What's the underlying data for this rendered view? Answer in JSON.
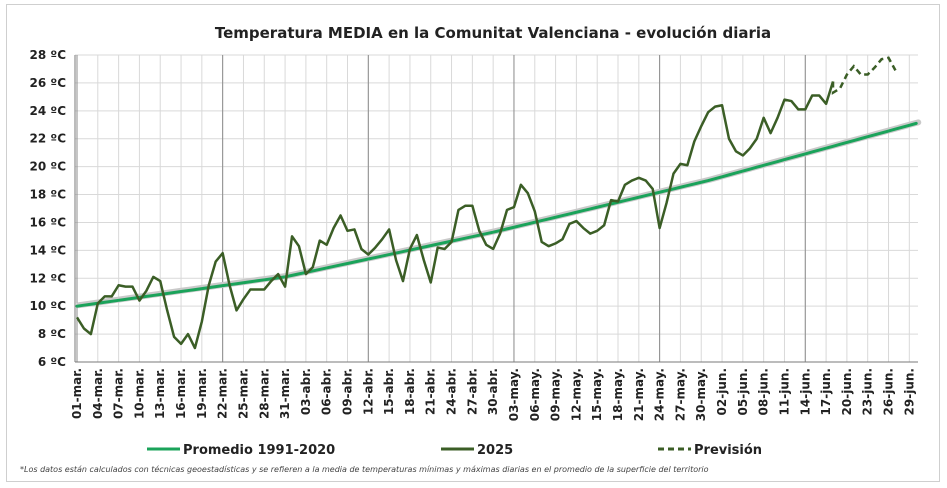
{
  "chart_data": {
    "type": "line",
    "title": "Temperatura MEDIA en la Comunitat Valenciana - evolución diaria",
    "footnote": "*Los datos están calculados con técnicas geoestadísticas y se refieren a la media de temperaturas mínimas y máximas diarias en el promedio de la superficie del territorio",
    "y_unit": "ºC",
    "ylim": [
      6,
      28
    ],
    "y_ticks": [
      6,
      8,
      10,
      12,
      14,
      16,
      18,
      20,
      22,
      24,
      26,
      28
    ],
    "y_tick_labels": [
      "6 ºC",
      "8 ºC",
      "10 ºC",
      "12 ºC",
      "14 ºC",
      "16 ºC",
      "18 ºC",
      "20 ºC",
      "22 ºC",
      "24 ºC",
      "26 ºC",
      "28 ºC"
    ],
    "x_start": "2025-03-01",
    "x_end": "2025-06-30",
    "x_tick_labels": [
      "01-mar.",
      "04-mar.",
      "07-mar.",
      "10-mar.",
      "13-mar.",
      "16-mar.",
      "19-mar.",
      "22-mar.",
      "25-mar.",
      "28-mar.",
      "31-mar.",
      "03-abr.",
      "06-abr.",
      "09-abr.",
      "12-abr.",
      "15-abr.",
      "18-abr.",
      "21-abr.",
      "24-abr.",
      "27-abr.",
      "30-abr.",
      "03-may.",
      "06-may.",
      "09-may.",
      "12-may.",
      "15-may.",
      "18-may.",
      "21-may.",
      "24-may.",
      "27-may.",
      "30-may.",
      "02-jun.",
      "05-jun.",
      "08-jun.",
      "11-jun.",
      "14-jun.",
      "17-jun.",
      "20-jun.",
      "23-jun.",
      "26-jun.",
      "29-jun."
    ],
    "month_separators": [
      "01-mar.",
      "22-mar.",
      "12-abr.",
      "03-may.",
      "24-may.",
      "14-jun."
    ],
    "grid": true,
    "legend_position": "bottom",
    "colors": {
      "promedio": "#1aa35a",
      "promedio_shadow": "#c9c9c9",
      "actual": "#3b5e26",
      "prevision": "#3b5e26",
      "grid": "#d9d9d9",
      "month_line": "#8c8c8c"
    },
    "series": [
      {
        "name": "Promedio 1991-2020",
        "style": "solid",
        "x": [
          "01-mar.",
          "31-mar.",
          "30-abr.",
          "31-may.",
          "30-jun."
        ],
        "values": [
          10.0,
          12.1,
          15.3,
          19.0,
          23.1
        ]
      },
      {
        "name": "2025",
        "style": "solid",
        "x_start": "01-mar.",
        "values": [
          9.2,
          8.4,
          8.0,
          10.2,
          10.7,
          10.7,
          11.5,
          11.4,
          11.4,
          10.4,
          11.1,
          12.1,
          11.8,
          9.7,
          7.8,
          7.3,
          8.0,
          7.0,
          8.9,
          11.5,
          13.2,
          13.8,
          11.5,
          9.7,
          10.5,
          11.2,
          11.2,
          11.2,
          11.8,
          12.3,
          11.4,
          15.0,
          14.3,
          12.3,
          12.8,
          14.7,
          14.4,
          15.6,
          16.5,
          15.4,
          15.5,
          14.1,
          13.7,
          14.2,
          14.8,
          15.5,
          13.3,
          11.8,
          14.1,
          15.1,
          13.3,
          11.7,
          14.2,
          14.1,
          14.6,
          16.9,
          17.2,
          17.2,
          15.4,
          14.4,
          14.1,
          15.2,
          16.9,
          17.1,
          18.7,
          18.1,
          16.8,
          14.6,
          14.3,
          14.5,
          14.8,
          15.9,
          16.1,
          15.6,
          15.2,
          15.4,
          15.8,
          17.6,
          17.5,
          18.7,
          19.0,
          19.2,
          19.0,
          18.4,
          15.6,
          17.4,
          19.5,
          20.2,
          20.1,
          21.8,
          22.9,
          23.9,
          24.3,
          24.4,
          22.0,
          21.1,
          20.8,
          21.3,
          22.0,
          23.5,
          22.4,
          23.5,
          24.8,
          24.7,
          24.1,
          24.1,
          25.1,
          25.1,
          24.5,
          26.1
        ]
      },
      {
        "name": "Previsión",
        "style": "dashed",
        "x_start": "18-jun.",
        "values": [
          25.3,
          25.6,
          26.6,
          27.2,
          26.6,
          26.6,
          27.1,
          27.7,
          27.8,
          26.9
        ]
      }
    ]
  }
}
